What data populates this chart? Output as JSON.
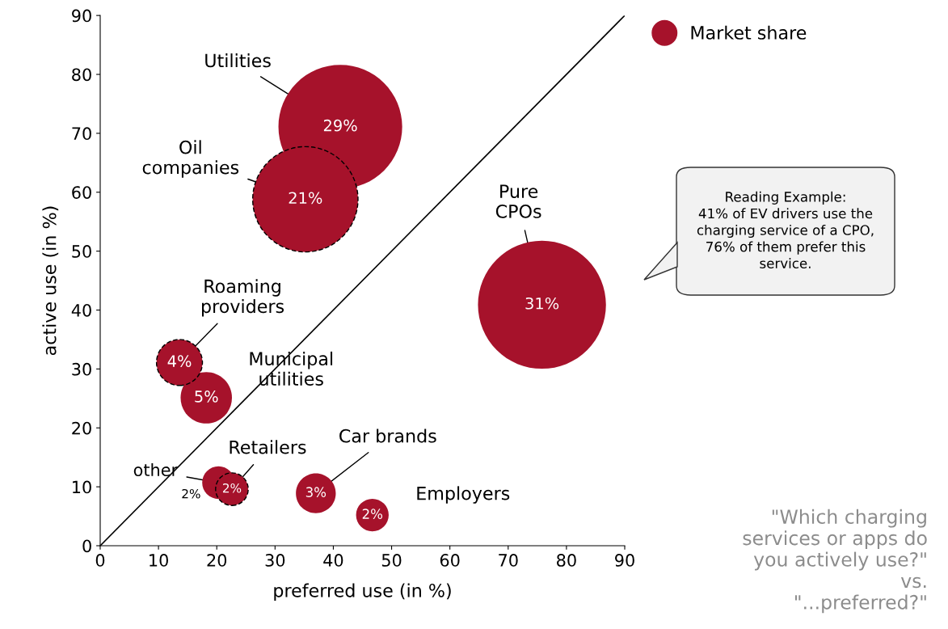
{
  "chart_data": {
    "type": "bubble",
    "xlabel": "preferred use (in %)",
    "ylabel": "active use (in %)",
    "xlim": [
      0,
      90
    ],
    "ylim": [
      0,
      90
    ],
    "xticks": [
      0,
      10,
      20,
      30,
      40,
      50,
      60,
      70,
      80,
      90
    ],
    "yticks": [
      0,
      10,
      20,
      30,
      40,
      50,
      60,
      70,
      80,
      90
    ],
    "grid": false,
    "legend": "top right",
    "marker": "circle",
    "series": [
      {
        "name": "Market share",
        "color": "#a6122b",
        "x": [
          41.2,
          75.8,
          18.2,
          20.3,
          37.0,
          46.7
        ],
        "values": [
          71.1,
          40.9,
          25.1,
          10.7,
          8.9,
          5.2
        ],
        "sizes": [
          0.935,
          1,
          0.161,
          0.065,
          0.097,
          0.065
        ],
        "line_style": "solid"
      },
      {
        "color": "#a6122b",
        "x": [
          35.2,
          13.6,
          22.6
        ],
        "values": [
          58.8,
          31.1,
          9.6
        ],
        "sizes": [
          0.677,
          0.129,
          0.065
        ],
        "line_style": "dashed"
      },
      {
        "type": "line",
        "color": "#000000",
        "x": [
          0,
          90
        ],
        "values": [
          0,
          90
        ],
        "marker": "none"
      }
    ],
    "annotations": [
      {
        "text": "Utilities",
        "x": 41.2,
        "y": 71.1
      },
      {
        "text": "Oil\ncompanies",
        "x": 35.2,
        "y": 58.8
      },
      {
        "text": "Pure\nCPOs",
        "x": 75.8,
        "y": 40.9
      },
      {
        "text": "Roaming\nproviders",
        "x": 13.6,
        "y": 31.1
      },
      {
        "text": "Municipal\nutilities",
        "x": 18.2,
        "y": 25.1
      },
      {
        "text": "other",
        "x": 20.3,
        "y": 10.7
      },
      {
        "text": "Retailers",
        "x": 22.6,
        "y": 9.6
      },
      {
        "text": "Car brands",
        "x": 37.0,
        "y": 8.9
      },
      {
        "text": "Employers",
        "x": 46.7,
        "y": 5.2
      },
      {
        "text": "29%",
        "x": 41.2,
        "y": 71.1
      },
      {
        "text": "21%",
        "x": 35.2,
        "y": 58.8
      },
      {
        "text": "31%",
        "x": 75.8,
        "y": 40.9
      },
      {
        "text": "4%",
        "x": 13.6,
        "y": 31.1
      },
      {
        "text": "5%",
        "x": 18.2,
        "y": 25.1
      },
      {
        "text": "2%",
        "x": 20.3,
        "y": 10.7
      },
      {
        "text": "2%",
        "x": 22.6,
        "y": 9.6
      },
      {
        "text": "3%",
        "x": 37.0,
        "y": 8.9
      },
      {
        "text": "2%",
        "x": 46.7,
        "y": 5.2
      },
      "Reading Example:\n41% of EV drivers use the\ncharging service of a CPO,\n76% of them prefer this\nservice.",
      "\"Which charging\nservices or apps do\nyou actively use?\"\nvs.\n\"...preferred?\""
    ]
  }
}
